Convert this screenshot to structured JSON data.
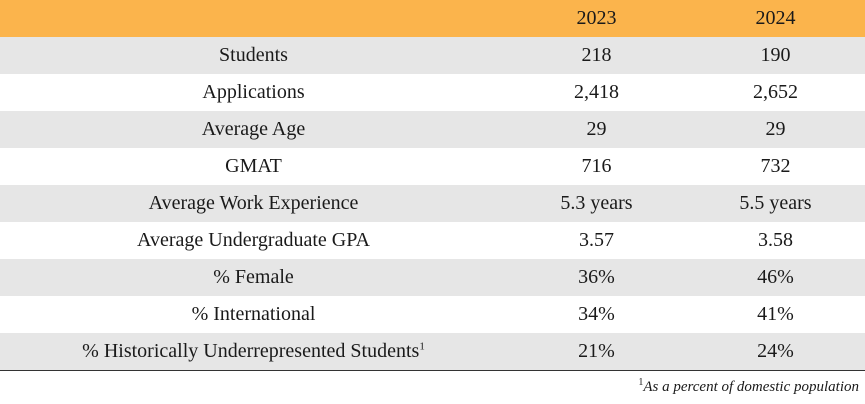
{
  "table": {
    "header": {
      "label": "",
      "col1": "2023",
      "col2": "2024"
    },
    "rows": [
      {
        "metric": "Students",
        "y2023": "218",
        "y2024": "190"
      },
      {
        "metric": "Applications",
        "y2023": "2,418",
        "y2024": "2,652"
      },
      {
        "metric": "Average Age",
        "y2023": "29",
        "y2024": "29"
      },
      {
        "metric": "GMAT",
        "y2023": "716",
        "y2024": "732"
      },
      {
        "metric": "Average Work Experience",
        "y2023": "5.3 years",
        "y2024": "5.5 years"
      },
      {
        "metric": "Average Undergraduate GPA",
        "y2023": "3.57",
        "y2024": "3.58"
      },
      {
        "metric": "% Female",
        "y2023": "36%",
        "y2024": "46%"
      },
      {
        "metric": "% International",
        "y2023": "34%",
        "y2024": "41%"
      },
      {
        "metric": "% Historically Underrepresented Students",
        "metric_sup": "1",
        "y2023": "21%",
        "y2024": "24%"
      }
    ]
  },
  "footnote": {
    "marker": "1",
    "text": "As a percent of domestic population"
  },
  "colors": {
    "header_bg": "#fbb44c",
    "stripe_bg": "#e6e6e6",
    "row_bg": "#ffffff"
  }
}
